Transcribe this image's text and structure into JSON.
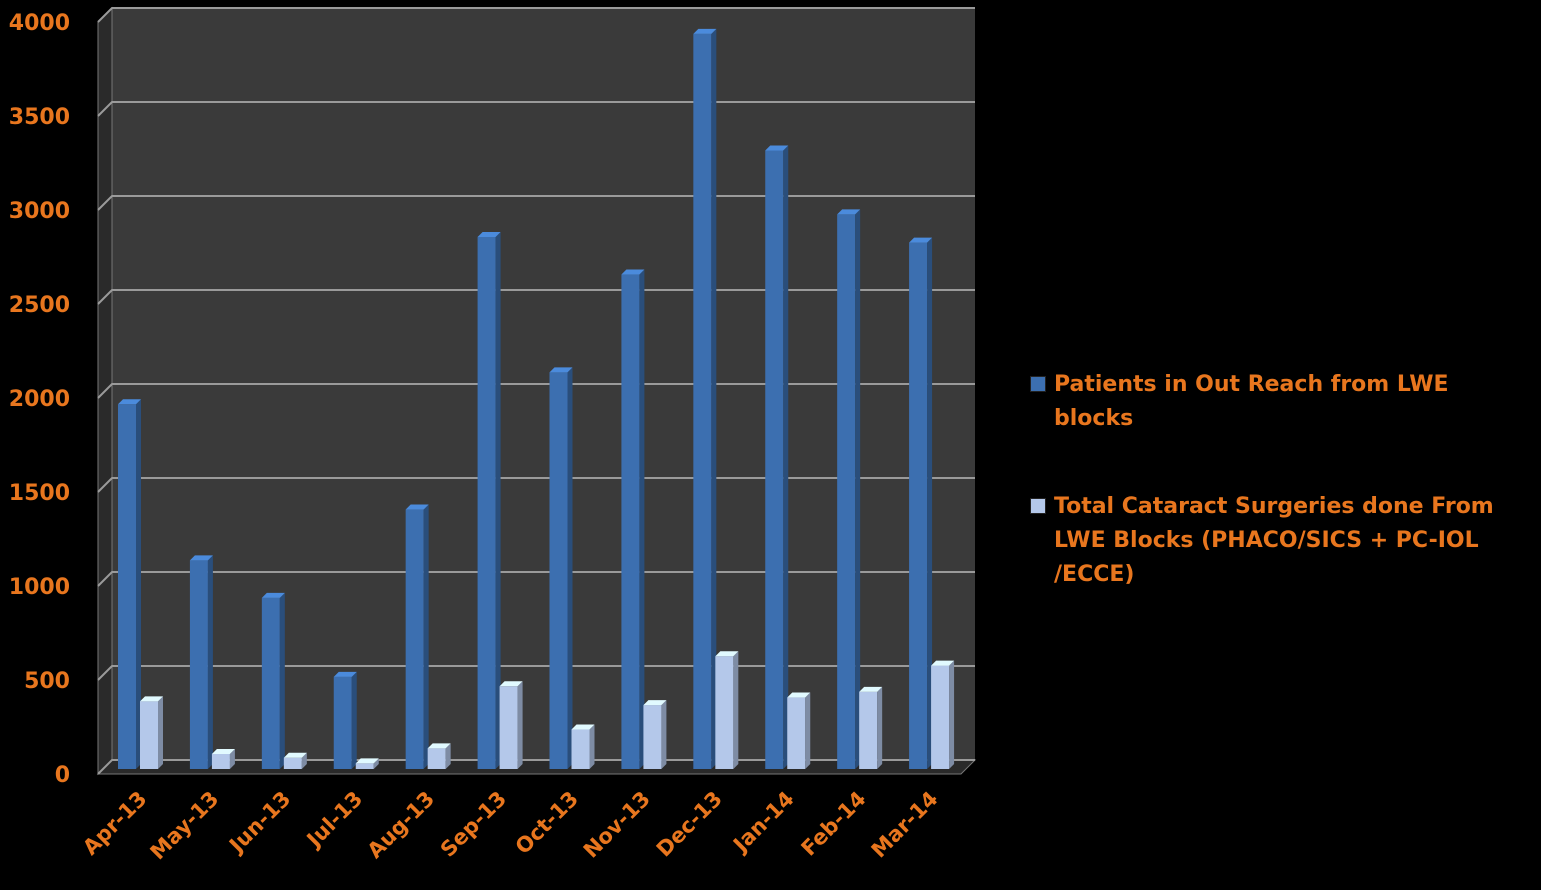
{
  "chart_data": {
    "type": "bar",
    "categories": [
      "Apr-13",
      "May-13",
      "Jun-13",
      "Jul-13",
      "Aug-13",
      "Sep-13",
      "Oct-13",
      "Nov-13",
      "Dec-13",
      "Jan-14",
      "Feb-14",
      "Mar-14"
    ],
    "series": [
      {
        "name": "Patients in Out Reach from LWE blocks",
        "color": "#3c6fb0",
        "values": [
          1940,
          1110,
          910,
          490,
          1380,
          2830,
          2110,
          2630,
          3910,
          3290,
          2950,
          2800
        ]
      },
      {
        "name": "Total Cataract Surgeries done From LWE Blocks (PHACO/SICS + PC-IOL   /ECCE)",
        "color": "#b4c8ea",
        "values": [
          360,
          80,
          60,
          30,
          110,
          440,
          210,
          340,
          600,
          380,
          410,
          550
        ]
      }
    ],
    "yticks": [
      "0",
      "500",
      "1000",
      "1500",
      "2000",
      "2500",
      "3000",
      "3500",
      "4000"
    ],
    "ylim": [
      0,
      4000
    ],
    "grid": true,
    "legend": "right",
    "colors": {
      "background": "#000000",
      "plot_wall": "#3a3a3a",
      "gridline": "#9a9a9a",
      "text": "#e8761e"
    }
  }
}
